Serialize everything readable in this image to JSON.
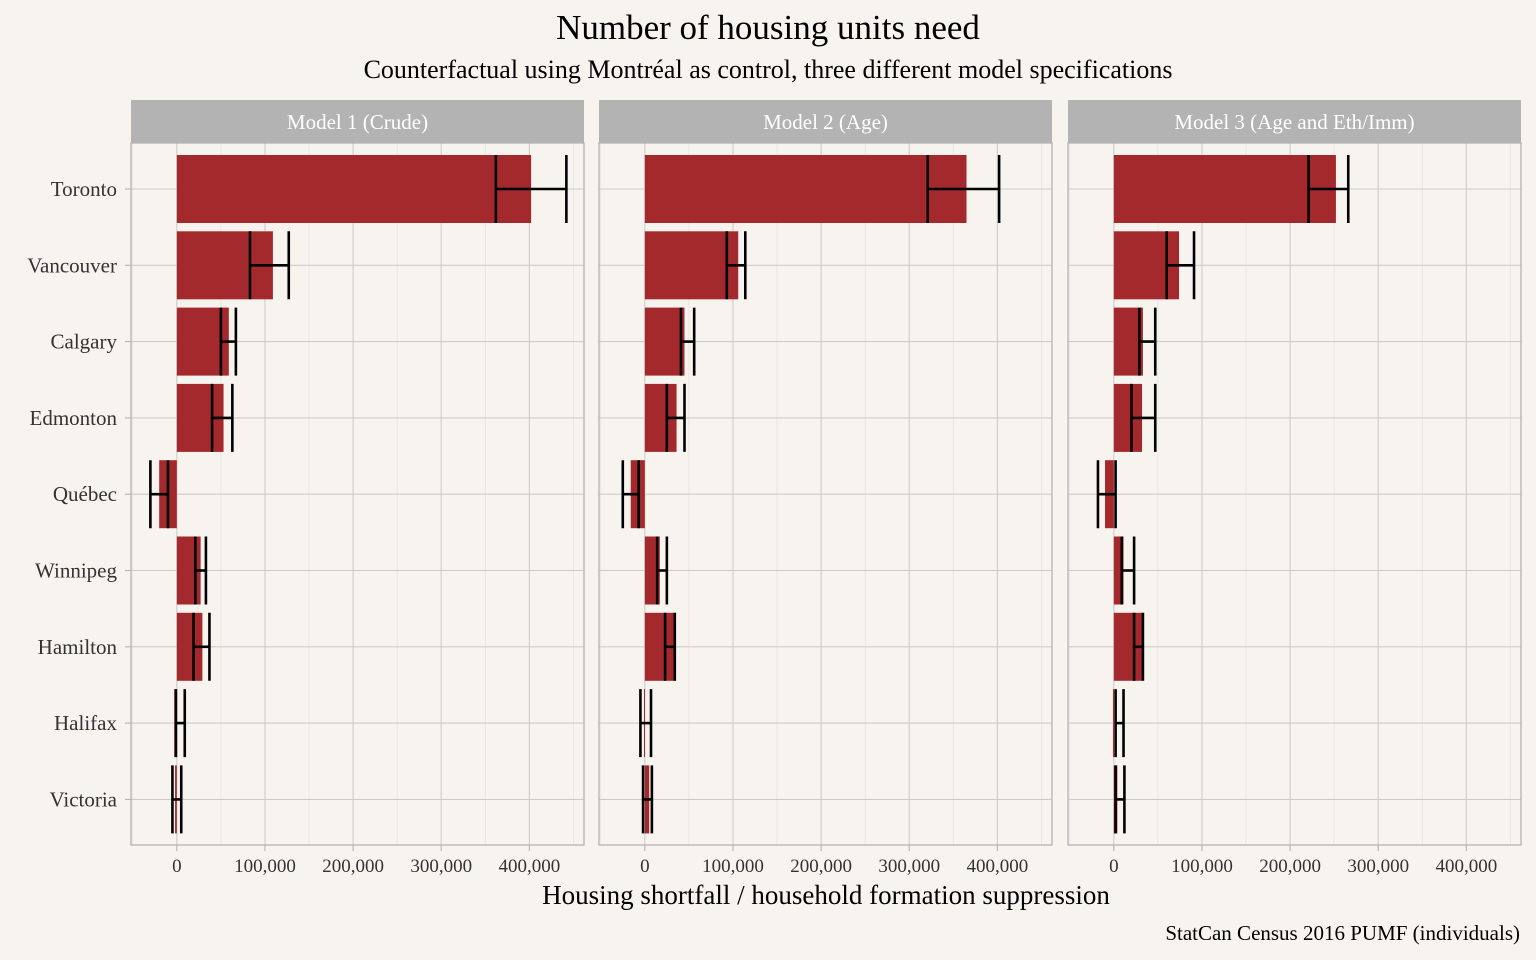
{
  "chart_data": {
    "type": "bar",
    "orientation": "horizontal",
    "title": "Number of housing units need",
    "subtitle": "Counterfactual using Montréal as control, three different model specifications",
    "xlabel": "Housing shortfall / household formation suppression",
    "caption": "StatCan Census 2016 PUMF (individuals)",
    "xlim": [
      -52000,
      462000
    ],
    "x_ticks": [
      0,
      100000,
      200000,
      300000,
      400000
    ],
    "x_tick_labels": [
      "0",
      "100,000",
      "200,000",
      "300,000",
      "400,000"
    ],
    "grid": true,
    "bar_color": "#A3292C",
    "errorbar_color": "#000000",
    "categories": [
      "Toronto",
      "Vancouver",
      "Calgary",
      "Edmonton",
      "Québec",
      "Winnipeg",
      "Hamilton",
      "Halifax",
      "Victoria"
    ],
    "panels": [
      {
        "name": "Model 1 (Crude)",
        "values": [
          402000,
          109000,
          59000,
          53000,
          -20000,
          27000,
          29000,
          -3000,
          -2000
        ],
        "ci_low": [
          362000,
          83000,
          50000,
          40000,
          -30000,
          21000,
          19000,
          -1000,
          -5000
        ],
        "ci_high": [
          442000,
          127000,
          67000,
          63000,
          -10000,
          33000,
          37000,
          9000,
          5000
        ]
      },
      {
        "name": "Model 2 (Age)",
        "values": [
          365000,
          106000,
          45000,
          36000,
          -16000,
          17000,
          35000,
          -1000,
          5000
        ],
        "ci_low": [
          321000,
          93000,
          41000,
          25000,
          -25000,
          14000,
          23000,
          -5000,
          -2000
        ],
        "ci_high": [
          402000,
          114000,
          56000,
          45000,
          -7000,
          25000,
          34000,
          7000,
          8000
        ]
      },
      {
        "name": "Model 3 (Age and Eth/Imm)",
        "values": [
          252000,
          74000,
          33000,
          32000,
          -10000,
          11000,
          33000,
          -1000,
          4000
        ],
        "ci_low": [
          221000,
          60000,
          29000,
          20000,
          -18000,
          9000,
          23000,
          2000,
          2000
        ],
        "ci_high": [
          266000,
          91000,
          47000,
          47000,
          2000,
          23000,
          33000,
          11000,
          12000
        ]
      }
    ]
  }
}
